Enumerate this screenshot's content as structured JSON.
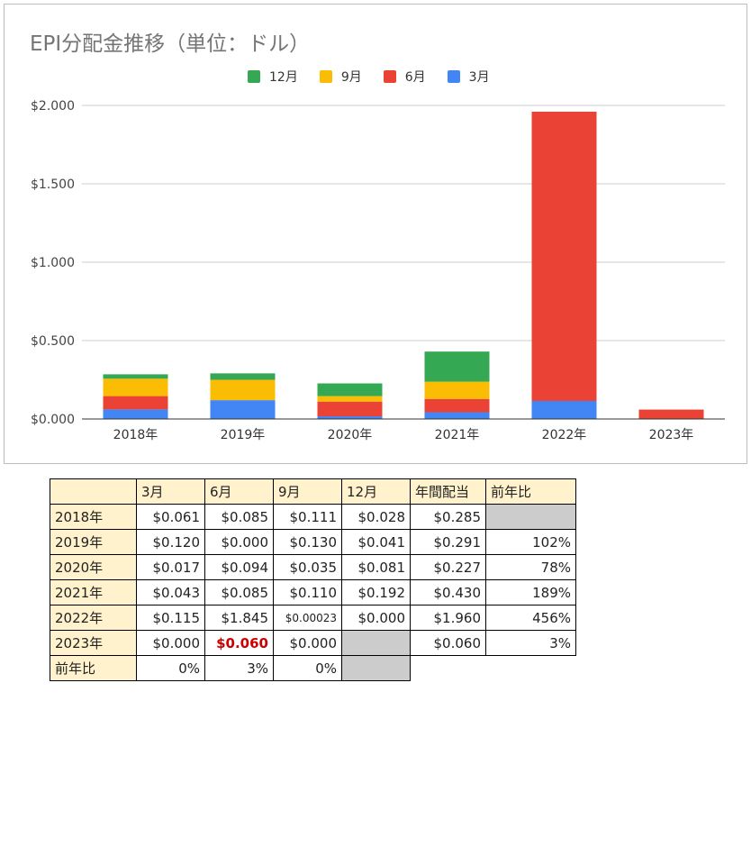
{
  "chart_data": {
    "type": "bar",
    "stacked": true,
    "title": "EPI分配金推移（単位：ドル）",
    "categories": [
      "2018年",
      "2019年",
      "2020年",
      "2021年",
      "2022年",
      "2023年"
    ],
    "series": [
      {
        "name": "3月",
        "color": "#4285f4",
        "values": [
          0.061,
          0.12,
          0.017,
          0.043,
          0.115,
          0.0
        ]
      },
      {
        "name": "6月",
        "color": "#ea4335",
        "values": [
          0.085,
          0.0,
          0.094,
          0.085,
          1.845,
          0.06
        ]
      },
      {
        "name": "9月",
        "color": "#fbbc04",
        "values": [
          0.111,
          0.13,
          0.035,
          0.11,
          0.00023,
          0.0
        ]
      },
      {
        "name": "12月",
        "color": "#34a853",
        "values": [
          0.028,
          0.041,
          0.081,
          0.192,
          0.0,
          0
        ]
      }
    ],
    "legend_order": [
      "12月",
      "9月",
      "6月",
      "3月"
    ],
    "legend_position": "top",
    "ylim": [
      0,
      2.0
    ],
    "yticks": [
      0,
      0.5,
      1.0,
      1.5,
      2.0
    ],
    "ytick_labels": [
      "$0.000",
      "$0.500",
      "$1.000",
      "$1.500",
      "$2.000"
    ],
    "grid": true
  },
  "table": {
    "header": [
      "",
      "3月",
      "6月",
      "9月",
      "12月",
      "年間配当",
      "前年比"
    ],
    "rows": [
      {
        "year": "2018年",
        "cells": [
          "$0.061",
          "$0.085",
          "$0.111",
          "$0.028",
          "$0.285",
          ""
        ]
      },
      {
        "year": "2019年",
        "cells": [
          "$0.120",
          "$0.000",
          "$0.130",
          "$0.041",
          "$0.291",
          "102%"
        ]
      },
      {
        "year": "2020年",
        "cells": [
          "$0.017",
          "$0.094",
          "$0.035",
          "$0.081",
          "$0.227",
          "78%"
        ]
      },
      {
        "year": "2021年",
        "cells": [
          "$0.043",
          "$0.085",
          "$0.110",
          "$0.192",
          "$0.430",
          "189%"
        ]
      },
      {
        "year": "2022年",
        "cells": [
          "$0.115",
          "$1.845",
          "$0.00023",
          "$0.000",
          "$1.960",
          "456%"
        ]
      },
      {
        "year": "2023年",
        "cells": [
          "$0.000",
          "$0.060",
          "$0.000",
          "",
          "$0.060",
          "3%"
        ]
      }
    ],
    "footer": {
      "label": "前年比",
      "cells": [
        "0%",
        "3%",
        "0%"
      ]
    }
  }
}
